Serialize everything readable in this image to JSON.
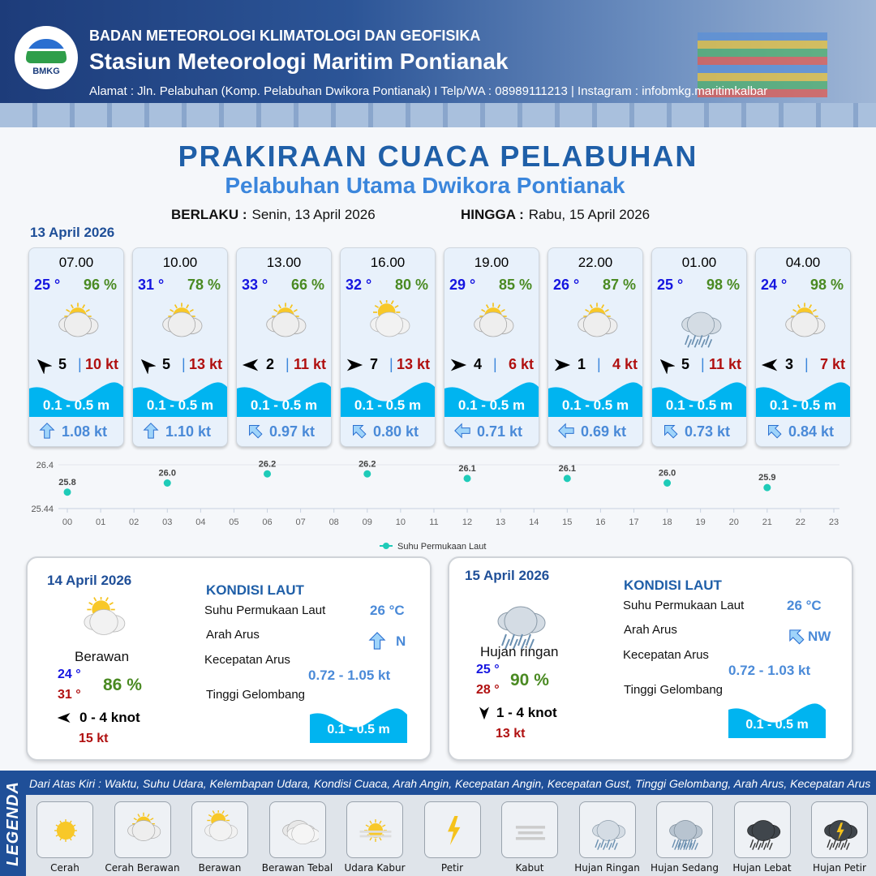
{
  "header": {
    "org": "BADAN METEOROLOGI KLIMATOLOGI DAN GEOFISIKA",
    "station": "Stasiun Meteorologi Maritim Pontianak",
    "address": "Alamat : Jln. Pelabuhan (Komp. Pelabuhan Dwikora Pontianak) I Telp/WA : 08989111213 | Instagram : infobmkg.maritimkalbar",
    "logo_text": "BMKG"
  },
  "title": "PRAKIRAAN CUACA PELABUHAN",
  "subtitle": "Pelabuhan Utama Dwikora Pontianak",
  "validity": {
    "from_label": "BERLAKU :",
    "from": "Senin, 13 April 2026",
    "to_label": "HINGGA :",
    "to": "Rabu, 15 April 2026"
  },
  "day1_date": "13 April 2026",
  "forecast": [
    {
      "time": "07.00",
      "temp": "25 °",
      "hum": "96 %",
      "icon": "cerah-berawan",
      "wind_dir_deg": 315,
      "wind": "5",
      "gust": "10 kt",
      "wave": "0.1 - 0.5 m",
      "cur_dir_deg": 0,
      "cur": "1.08 kt"
    },
    {
      "time": "10.00",
      "temp": "31 °",
      "hum": "78 %",
      "icon": "cerah-berawan",
      "wind_dir_deg": 315,
      "wind": "5",
      "gust": "13 kt",
      "wave": "0.1 - 0.5 m",
      "cur_dir_deg": 0,
      "cur": "1.10 kt"
    },
    {
      "time": "13.00",
      "temp": "33 °",
      "hum": "66 %",
      "icon": "cerah-berawan",
      "wind_dir_deg": 270,
      "wind": "2",
      "gust": "11 kt",
      "wave": "0.1 - 0.5 m",
      "cur_dir_deg": 315,
      "cur": "0.97 kt"
    },
    {
      "time": "16.00",
      "temp": "32 °",
      "hum": "80 %",
      "icon": "berawan",
      "wind_dir_deg": 90,
      "wind": "7",
      "gust": "13 kt",
      "wave": "0.1 - 0.5 m",
      "cur_dir_deg": 315,
      "cur": "0.80 kt"
    },
    {
      "time": "19.00",
      "temp": "29 °",
      "hum": "85 %",
      "icon": "cerah-berawan",
      "wind_dir_deg": 90,
      "wind": "4",
      "gust": "6 kt",
      "wave": "0.1 - 0.5 m",
      "cur_dir_deg": 270,
      "cur": "0.71 kt"
    },
    {
      "time": "22.00",
      "temp": "26 °",
      "hum": "87 %",
      "icon": "cerah-berawan",
      "wind_dir_deg": 90,
      "wind": "1",
      "gust": "4 kt",
      "wave": "0.1 - 0.5 m",
      "cur_dir_deg": 270,
      "cur": "0.69 kt"
    },
    {
      "time": "01.00",
      "temp": "25 °",
      "hum": "98 %",
      "icon": "hujan-ringan",
      "wind_dir_deg": 315,
      "wind": "5",
      "gust": "11 kt",
      "wave": "0.1 - 0.5 m",
      "cur_dir_deg": 315,
      "cur": "0.73 kt"
    },
    {
      "time": "04.00",
      "temp": "24 °",
      "hum": "98 %",
      "icon": "cerah-berawan",
      "wind_dir_deg": 270,
      "wind": "3",
      "gust": "7 kt",
      "wave": "0.1 - 0.5 m",
      "cur_dir_deg": 315,
      "cur": "0.84 kt"
    }
  ],
  "chart_data": {
    "type": "scatter",
    "legend": "Suhu Permukaan Laut",
    "legend_position": "bottom",
    "x_ticks": [
      "00",
      "01",
      "02",
      "03",
      "04",
      "05",
      "06",
      "07",
      "08",
      "09",
      "10",
      "11",
      "12",
      "13",
      "14",
      "15",
      "16",
      "17",
      "18",
      "19",
      "20",
      "21",
      "22",
      "23"
    ],
    "y_ticks": [
      "26.4",
      "25.44"
    ],
    "ylim": [
      25.44,
      26.4
    ],
    "x": [
      0,
      3,
      6,
      9,
      12,
      15,
      18,
      21
    ],
    "values": [
      25.8,
      26.0,
      26.2,
      26.2,
      26.1,
      26.1,
      26.0,
      25.9
    ],
    "labels": [
      "25.8",
      "26.0",
      "26.2",
      "26.2",
      "26.1",
      "26.1",
      "26.0",
      "25.9"
    ],
    "color": "#1ecbb8",
    "grid": "horizontal"
  },
  "days": [
    {
      "date": "14 April 2026",
      "icon": "berawan",
      "condition": "Berawan",
      "tmin": "24 °",
      "tmax": "31 °",
      "hum": "86 %",
      "wind_dir_deg": 270,
      "wind": "0  - 4 knot",
      "gust": "15 kt",
      "kondisi_title": "KONDISI LAUT",
      "sst_label": "Suhu Permukaan Laut",
      "sst": "26 °C",
      "cur_dir_label": "Arah Arus",
      "cur_dir": "N",
      "cur_dir_deg": 0,
      "cur_speed_label": "Kecepatan Arus",
      "cur_speed": "0.72 - 1.05 kt",
      "wave_label": "Tinggi Gelombang",
      "wave": "0.1 - 0.5 m"
    },
    {
      "date": "15 April 2026",
      "icon": "hujan-ringan",
      "condition": "Hujan ringan",
      "tmin": "25 °",
      "tmax": "28 °",
      "hum": "90 %",
      "wind_dir_deg": 180,
      "wind": "1  - 4 knot",
      "gust": "13 kt",
      "kondisi_title": "KONDISI LAUT",
      "sst_label": "Suhu Permukaan Laut",
      "sst": "26 °C",
      "cur_dir_label": "Arah Arus",
      "cur_dir": "NW",
      "cur_dir_deg": 315,
      "cur_speed_label": "Kecepatan Arus",
      "cur_speed": "0.72 - 1.03 kt",
      "wave_label": "Tinggi Gelombang",
      "wave": "0.1 - 0.5 m"
    }
  ],
  "legend": {
    "title": "LEGENDA",
    "description": "Dari Atas Kiri : Waktu, Suhu Udara, Kelembapan Udara, Kondisi Cuaca, Arah Angin, Kecepatan Angin, Kecepatan Gust, Tinggi Gelombang, Arah Arus, Kecepatan Arus",
    "items": [
      {
        "label": "Cerah",
        "icon": "cerah"
      },
      {
        "label": "Cerah Berawan",
        "icon": "cerah-berawan"
      },
      {
        "label": "Berawan",
        "icon": "berawan"
      },
      {
        "label": "Berawan Tebal",
        "icon": "berawan-tebal"
      },
      {
        "label": "Udara Kabur",
        "icon": "udara-kabur"
      },
      {
        "label": "Petir",
        "icon": "petir"
      },
      {
        "label": "Kabut",
        "icon": "kabut"
      },
      {
        "label": "Hujan Ringan",
        "icon": "hujan-ringan"
      },
      {
        "label": "Hujan Sedang",
        "icon": "hujan-sedang"
      },
      {
        "label": "Hujan Lebat",
        "icon": "hujan-lebat"
      },
      {
        "label": "Hujan Petir",
        "icon": "hujan-petir"
      }
    ]
  },
  "colors": {
    "wave": "#00b4f0",
    "title": "#1f5fa8",
    "temp": "#1515e0",
    "humidity": "#4a8a22",
    "gust": "#b01010",
    "current": "#4a8ad8"
  }
}
